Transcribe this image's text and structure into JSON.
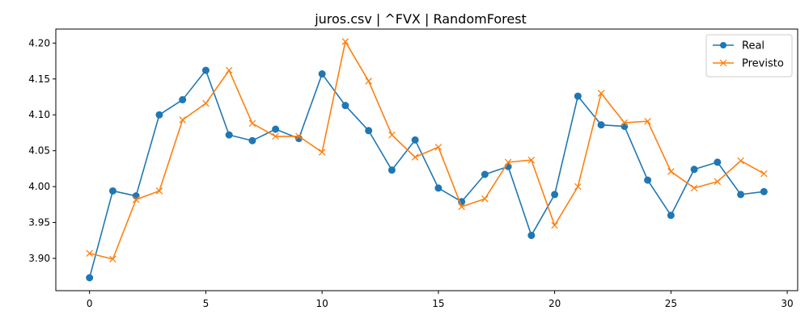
{
  "chart_data": {
    "type": "line",
    "title": "juros.csv | ^FVX | RandomForest",
    "xlabel": "",
    "ylabel": "",
    "xlim": [
      -1.45,
      30.45
    ],
    "ylim": [
      3.855,
      4.2195
    ],
    "x_ticks": [
      0,
      5,
      10,
      15,
      20,
      25,
      30
    ],
    "x_tick_labels": [
      "0",
      "5",
      "10",
      "15",
      "20",
      "25",
      "30"
    ],
    "y_ticks": [
      3.9,
      3.95,
      4.0,
      4.05,
      4.1,
      4.15,
      4.2
    ],
    "y_tick_labels": [
      "3.90",
      "3.95",
      "4.00",
      "4.05",
      "4.10",
      "4.15",
      "4.20"
    ],
    "grid": false,
    "legend_position": "upper right",
    "x": [
      0,
      1,
      2,
      3,
      4,
      5,
      6,
      7,
      8,
      9,
      10,
      11,
      12,
      13,
      14,
      15,
      16,
      17,
      18,
      19,
      20,
      21,
      22,
      23,
      24,
      25,
      26,
      27,
      28,
      29
    ],
    "series": [
      {
        "name": "Real",
        "color": "#1f77b4",
        "marker": "circle",
        "values": [
          3.873,
          3.994,
          3.987,
          4.1,
          4.121,
          4.162,
          4.072,
          4.064,
          4.08,
          4.067,
          4.157,
          4.113,
          4.078,
          4.023,
          4.065,
          3.998,
          3.979,
          4.017,
          4.028,
          3.932,
          3.989,
          4.126,
          4.086,
          4.084,
          4.009,
          3.96,
          4.024,
          4.034,
          3.989,
          3.993
        ]
      },
      {
        "name": "Previsto",
        "color": "#ff7f0e",
        "marker": "x",
        "values": [
          3.907,
          3.899,
          3.982,
          3.994,
          4.093,
          4.116,
          4.162,
          4.088,
          4.07,
          4.07,
          4.048,
          4.202,
          4.147,
          4.072,
          4.041,
          4.055,
          3.972,
          3.983,
          4.034,
          4.037,
          3.946,
          4.0,
          4.13,
          4.089,
          4.091,
          4.021,
          3.998,
          4.007,
          4.036,
          4.018
        ]
      }
    ]
  }
}
